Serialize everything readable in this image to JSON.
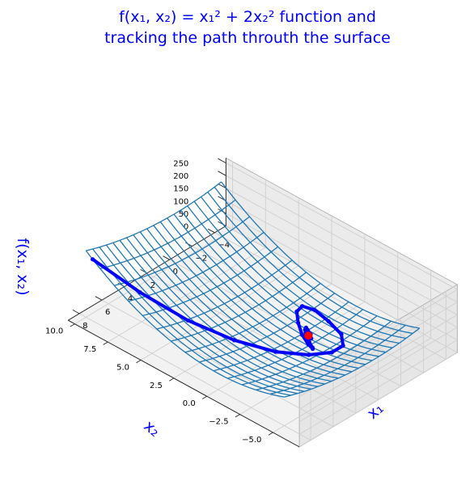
{
  "chart_data": {
    "type": "surface3d",
    "title_lines": [
      "f(x₁, x₂) = x₁² + 2x₂² function and",
      "tracking the path throuth the surface"
    ],
    "function": "f(x1, x2) = x1^2 + 2*x2^2",
    "xlabel": "x₁",
    "ylabel": "x₂",
    "zlabel": "f(x₁, x₂)",
    "x_ticks": [
      "−4",
      "−2",
      "0",
      "2",
      "4",
      "6",
      "8"
    ],
    "y_ticks": [
      "−5.0",
      "−2.5",
      "0.0",
      "2.5",
      "5.0",
      "7.5",
      "10.0"
    ],
    "z_ticks": [
      "0",
      "50",
      "100",
      "150",
      "200",
      "250"
    ],
    "xlim": [
      -5,
      9
    ],
    "ylim": [
      -7,
      10.5
    ],
    "zlim": [
      0,
      270
    ],
    "surface_x_range": [
      -4,
      8
    ],
    "surface_y_range": [
      -5,
      10
    ],
    "path": [
      {
        "x1": 8,
        "x2": 9.5,
        "f": 244.5
      },
      {
        "x1": 6.6,
        "x2": 7.1,
        "f": 144.4
      },
      {
        "x1": 5.3,
        "x2": 4.6,
        "f": 70.4
      },
      {
        "x1": 4.0,
        "x2": 2.2,
        "f": 25.7
      },
      {
        "x1": 2.8,
        "x2": 0.1,
        "f": 7.9
      },
      {
        "x1": 1.6,
        "x2": -1.4,
        "f": 6.5
      },
      {
        "x1": 0.5,
        "x2": -2.2,
        "f": 9.9
      },
      {
        "x1": -0.5,
        "x2": -2.2,
        "f": 9.9
      },
      {
        "x1": -1.4,
        "x2": -1.3,
        "f": 5.3
      },
      {
        "x1": -1.9,
        "x2": 0.1,
        "f": 3.6
      },
      {
        "x1": -2.1,
        "x2": 1.3,
        "f": 7.8
      },
      {
        "x1": -1.8,
        "x2": 2.0,
        "f": 11.2
      },
      {
        "x1": -1.2,
        "x2": 1.9,
        "f": 8.7
      },
      {
        "x1": -0.5,
        "x2": 1.2,
        "f": 3.1
      },
      {
        "x1": 0.2,
        "x2": 0.3,
        "f": 0.2
      },
      {
        "x1": 0.7,
        "x2": -0.6,
        "f": 1.2
      },
      {
        "x1": 0.9,
        "x2": -1.1,
        "f": 3.2
      },
      {
        "x1": 0.8,
        "x2": -1.0,
        "f": 2.6
      },
      {
        "x1": 0.5,
        "x2": -0.5,
        "f": 0.8
      },
      {
        "x1": 0.1,
        "x2": 0.1,
        "f": 0.0
      },
      {
        "x1": -0.3,
        "x2": 0.5,
        "f": 0.6
      },
      {
        "x1": -0.5,
        "x2": 0.6,
        "f": 1.0
      },
      {
        "x1": -0.4,
        "x2": 0.4,
        "f": 0.5
      },
      {
        "x1": -0.2,
        "x2": 0.0,
        "f": 0.0
      },
      {
        "x1": 0.1,
        "x2": -0.3,
        "f": 0.2
      },
      {
        "x1": 0.3,
        "x2": -0.3,
        "f": 0.3
      },
      {
        "x1": 0.3,
        "x2": -0.1,
        "f": 0.1
      },
      {
        "x1": 0.1,
        "x2": 0.1,
        "f": 0.0
      },
      {
        "x1": -0.1,
        "x2": 0.2,
        "f": 0.1
      },
      {
        "x1": -0.2,
        "x2": 0.1,
        "f": 0.1
      },
      {
        "x1": 0.0,
        "x2": 0.0,
        "f": 0.0
      }
    ],
    "minimum": {
      "x1": 0,
      "x2": 0,
      "f": 0
    },
    "colors": {
      "title": "#0000ff",
      "surface": "#1f77b4",
      "path": "#0000ff",
      "minimum": "#ff0000",
      "pane": "#f2f2f2",
      "grid": "#cfcfcf"
    },
    "grid": true,
    "view": {
      "elevation_deg": 58,
      "azimuth_deg": 45
    }
  }
}
